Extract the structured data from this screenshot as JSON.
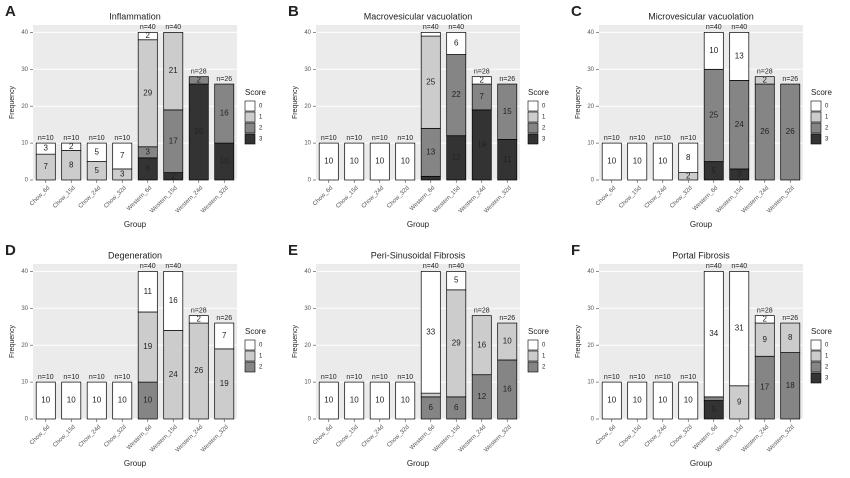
{
  "chart_data": [
    {
      "type": "bar",
      "panel": "A",
      "title": "Inflammation",
      "x_label": "Group",
      "y_label": "Frequency",
      "legend_title": "Score",
      "categories": [
        "Chow_6d",
        "Chow_15d",
        "Chow_24d",
        "Chow_32d",
        "Western_6d",
        "Western_15d",
        "Western_24d",
        "Western_32d"
      ],
      "totals_labels": [
        "n=10",
        "n=10",
        "n=10",
        "n=10",
        "n=40",
        "n=40",
        "n=28",
        "n=26"
      ],
      "series": [
        {
          "name": "0",
          "color": "#ffffff",
          "values": [
            3,
            2,
            5,
            7,
            2,
            0,
            0,
            0
          ]
        },
        {
          "name": "1",
          "color": "#cccccc",
          "values": [
            7,
            8,
            5,
            3,
            29,
            21,
            0,
            0
          ]
        },
        {
          "name": "2",
          "color": "#858585",
          "values": [
            0,
            0,
            0,
            0,
            3,
            17,
            2,
            16
          ]
        },
        {
          "name": "3",
          "color": "#333333",
          "values": [
            0,
            0,
            0,
            0,
            6,
            2,
            26,
            10
          ]
        }
      ],
      "ylim": [
        0,
        42
      ],
      "yticks": [
        0,
        10,
        20,
        30,
        40
      ],
      "grid": true
    },
    {
      "type": "bar",
      "panel": "B",
      "title": "Macrovesicular vacuolation",
      "x_label": "Group",
      "y_label": "Frequency",
      "legend_title": "Score",
      "categories": [
        "Chow_6d",
        "Chow_15d",
        "Chow_24d",
        "Chow_32d",
        "Western_6d",
        "Western_15d",
        "Western_24d",
        "Western_32d"
      ],
      "totals_labels": [
        "n=10",
        "n=10",
        "n=10",
        "n=10",
        "n=40",
        "n=40",
        "n=28",
        "n=26"
      ],
      "series": [
        {
          "name": "0",
          "color": "#ffffff",
          "values": [
            10,
            10,
            10,
            10,
            1,
            6,
            2,
            0
          ]
        },
        {
          "name": "1",
          "color": "#cccccc",
          "values": [
            0,
            0,
            0,
            0,
            25,
            0,
            0,
            0
          ]
        },
        {
          "name": "2",
          "color": "#858585",
          "values": [
            0,
            0,
            0,
            0,
            13,
            22,
            7,
            15
          ]
        },
        {
          "name": "3",
          "color": "#333333",
          "values": [
            0,
            0,
            0,
            0,
            1,
            12,
            19,
            11
          ]
        }
      ],
      "ylim": [
        0,
        42
      ],
      "yticks": [
        0,
        10,
        20,
        30,
        40
      ],
      "grid": true
    },
    {
      "type": "bar",
      "panel": "C",
      "title": "Microvesicular vacuolation",
      "x_label": "Group",
      "y_label": "Frequency",
      "legend_title": "Score",
      "categories": [
        "Chow_6d",
        "Chow_15d",
        "Chow_24d",
        "Chow_32d",
        "Western_6d",
        "Western_15d",
        "Western_24d",
        "Western_32d"
      ],
      "totals_labels": [
        "n=10",
        "n=10",
        "n=10",
        "n=10",
        "n=40",
        "n=40",
        "n=28",
        "n=26"
      ],
      "series": [
        {
          "name": "0",
          "color": "#ffffff",
          "values": [
            10,
            10,
            10,
            8,
            10,
            13,
            0,
            0
          ]
        },
        {
          "name": "1",
          "color": "#cccccc",
          "values": [
            0,
            0,
            0,
            2,
            0,
            0,
            2,
            0
          ]
        },
        {
          "name": "2",
          "color": "#858585",
          "values": [
            0,
            0,
            0,
            0,
            25,
            24,
            26,
            26
          ]
        },
        {
          "name": "3",
          "color": "#333333",
          "values": [
            0,
            0,
            0,
            0,
            5,
            3,
            0,
            0
          ]
        }
      ],
      "ylim": [
        0,
        42
      ],
      "yticks": [
        0,
        10,
        20,
        30,
        40
      ],
      "grid": true
    },
    {
      "type": "bar",
      "panel": "D",
      "title": "Degeneration",
      "x_label": "Group",
      "y_label": "Frequency",
      "legend_title": "Score",
      "categories": [
        "Chow_6d",
        "Chow_15d",
        "Chow_24d",
        "Chow_32d",
        "Western_6d",
        "Western_15d",
        "Western_24d",
        "Western_32d"
      ],
      "totals_labels": [
        "n=10",
        "n=10",
        "n=10",
        "n=10",
        "n=40",
        "n=40",
        "n=28",
        "n=26"
      ],
      "series": [
        {
          "name": "0",
          "color": "#ffffff",
          "values": [
            10,
            10,
            10,
            10,
            11,
            16,
            2,
            7
          ]
        },
        {
          "name": "1",
          "color": "#cccccc",
          "values": [
            0,
            0,
            0,
            0,
            19,
            24,
            26,
            19
          ]
        },
        {
          "name": "2",
          "color": "#858585",
          "values": [
            0,
            0,
            0,
            0,
            10,
            0,
            0,
            0
          ]
        }
      ],
      "ylim": [
        0,
        42
      ],
      "yticks": [
        0,
        10,
        20,
        30,
        40
      ],
      "grid": true
    },
    {
      "type": "bar",
      "panel": "E",
      "title": "Peri-Sinusoidal Fibrosis",
      "x_label": "Group",
      "y_label": "Frequency",
      "legend_title": "Score",
      "categories": [
        "Chow_6d",
        "Chow_15d",
        "Chow_24d",
        "Chow_32d",
        "Western_6d",
        "Western_15d",
        "Western_24d",
        "Western_32d"
      ],
      "totals_labels": [
        "n=10",
        "n=10",
        "n=10",
        "n=10",
        "n=40",
        "n=40",
        "n=28",
        "n=26"
      ],
      "series": [
        {
          "name": "0",
          "color": "#ffffff",
          "values": [
            10,
            10,
            10,
            10,
            33,
            5,
            0,
            0
          ]
        },
        {
          "name": "1",
          "color": "#cccccc",
          "values": [
            0,
            0,
            0,
            0,
            1,
            29,
            16,
            10
          ]
        },
        {
          "name": "2",
          "color": "#858585",
          "values": [
            0,
            0,
            0,
            0,
            6,
            6,
            12,
            16
          ]
        }
      ],
      "ylim": [
        0,
        42
      ],
      "yticks": [
        0,
        10,
        20,
        30,
        40
      ],
      "grid": true
    },
    {
      "type": "bar",
      "panel": "F",
      "title": "Portal Fibrosis",
      "x_label": "Group",
      "y_label": "Frequency",
      "legend_title": "Score",
      "categories": [
        "Chow_6d",
        "Chow_15d",
        "Chow_24d",
        "Chow_32d",
        "Western_6d",
        "Western_15d",
        "Western_24d",
        "Western_32d"
      ],
      "totals_labels": [
        "n=10",
        "n=10",
        "n=10",
        "n=10",
        "n=40",
        "n=40",
        "n=28",
        "n=26"
      ],
      "series": [
        {
          "name": "0",
          "color": "#ffffff",
          "values": [
            10,
            10,
            10,
            10,
            34,
            31,
            2,
            0
          ]
        },
        {
          "name": "1",
          "color": "#cccccc",
          "values": [
            0,
            0,
            0,
            0,
            0,
            9,
            9,
            8
          ]
        },
        {
          "name": "2",
          "color": "#858585",
          "values": [
            0,
            0,
            0,
            0,
            1,
            0,
            17,
            18
          ]
        },
        {
          "name": "3",
          "color": "#333333",
          "values": [
            0,
            0,
            0,
            0,
            5,
            0,
            0,
            0
          ]
        }
      ],
      "ylim": [
        0,
        42
      ],
      "yticks": [
        0,
        10,
        20,
        30,
        40
      ],
      "grid": true
    }
  ]
}
